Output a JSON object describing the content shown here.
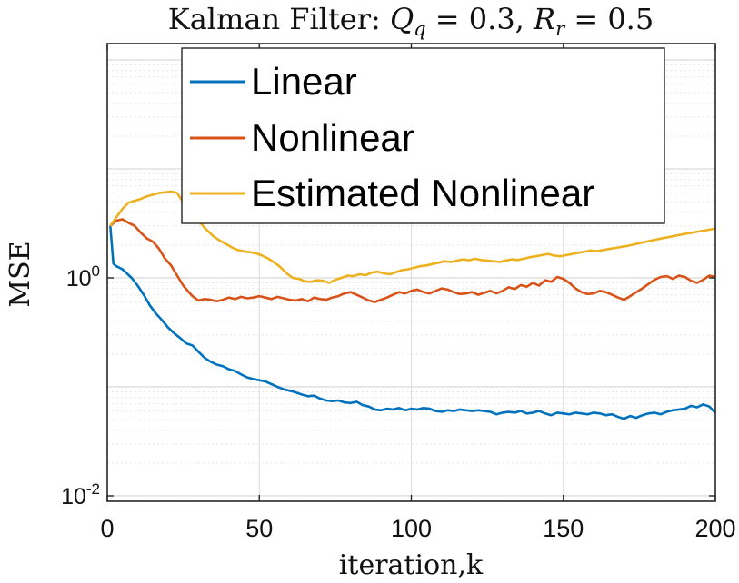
{
  "chart_data": {
    "type": "line",
    "title": "Kalman Filter: Q_q = 0.3, R_r = 0.5",
    "title_parts": {
      "prefix": "Kalman Filter: ",
      "q_symbol": "Q",
      "q_sub": "q",
      "q_eq": " = 0.3, ",
      "r_symbol": "R",
      "r_sub": "r",
      "r_eq": " = 0.5"
    },
    "xlabel": "iteration,k",
    "ylabel": "MSE",
    "xlim": [
      0,
      200
    ],
    "ylim_log10": [
      -2.05,
      2.15
    ],
    "yscale": "log",
    "grid": true,
    "legend_position": "top-center",
    "x_ticks": [
      0,
      50,
      100,
      150,
      200
    ],
    "x_tick_labels": [
      "0",
      "50",
      "100",
      "150",
      "200"
    ],
    "y_ticks_log10": [
      -2,
      0
    ],
    "y_tick_labels": [
      {
        "base": "10",
        "exp": "-2"
      },
      {
        "base": "10",
        "exp": "0"
      }
    ],
    "series": [
      {
        "name": "Linear",
        "color": "#0072BD",
        "x": [
          1,
          2,
          3,
          5,
          8,
          10,
          12,
          14,
          16,
          18,
          20,
          22,
          24,
          26,
          28,
          30,
          32,
          34,
          36,
          38,
          40,
          42,
          44,
          46,
          48,
          50,
          52,
          54,
          56,
          58,
          60,
          62,
          64,
          66,
          68,
          70,
          72,
          74,
          76,
          78,
          80,
          82,
          84,
          86,
          88,
          90,
          92,
          94,
          96,
          98,
          100,
          102,
          104,
          106,
          108,
          110,
          112,
          114,
          116,
          118,
          120,
          122,
          124,
          126,
          128,
          130,
          132,
          134,
          136,
          138,
          140,
          142,
          144,
          146,
          148,
          150,
          152,
          154,
          156,
          158,
          160,
          162,
          164,
          166,
          168,
          170,
          172,
          174,
          176,
          178,
          180,
          182,
          184,
          186,
          188,
          190,
          192,
          194,
          196,
          198,
          200
        ],
        "y": [
          3.0,
          1.35,
          1.28,
          1.2,
          1.0,
          0.85,
          0.7,
          0.56,
          0.47,
          0.41,
          0.35,
          0.31,
          0.28,
          0.25,
          0.24,
          0.21,
          0.185,
          0.17,
          0.16,
          0.155,
          0.145,
          0.14,
          0.13,
          0.122,
          0.118,
          0.115,
          0.112,
          0.106,
          0.1,
          0.095,
          0.092,
          0.089,
          0.085,
          0.082,
          0.083,
          0.078,
          0.075,
          0.074,
          0.075,
          0.072,
          0.071,
          0.073,
          0.068,
          0.066,
          0.062,
          0.061,
          0.063,
          0.062,
          0.064,
          0.061,
          0.063,
          0.062,
          0.064,
          0.063,
          0.06,
          0.059,
          0.061,
          0.06,
          0.062,
          0.061,
          0.06,
          0.061,
          0.06,
          0.059,
          0.056,
          0.058,
          0.059,
          0.058,
          0.06,
          0.057,
          0.058,
          0.06,
          0.057,
          0.055,
          0.058,
          0.057,
          0.056,
          0.058,
          0.057,
          0.056,
          0.058,
          0.057,
          0.055,
          0.056,
          0.053,
          0.051,
          0.054,
          0.052,
          0.055,
          0.057,
          0.058,
          0.056,
          0.059,
          0.061,
          0.062,
          0.063,
          0.067,
          0.065,
          0.069,
          0.066,
          0.058
        ]
      },
      {
        "name": "Nonlinear",
        "color": "#D95319",
        "x": [
          1,
          3,
          5,
          7,
          9,
          11,
          13,
          15,
          17,
          19,
          21,
          23,
          25,
          27,
          28,
          30,
          32,
          34,
          36,
          38,
          40,
          42,
          44,
          46,
          48,
          50,
          52,
          54,
          56,
          58,
          60,
          62,
          64,
          66,
          68,
          70,
          72,
          74,
          76,
          78,
          80,
          82,
          84,
          86,
          88,
          90,
          92,
          94,
          96,
          98,
          100,
          102,
          104,
          106,
          108,
          110,
          112,
          114,
          116,
          118,
          120,
          122,
          124,
          126,
          128,
          130,
          132,
          134,
          136,
          138,
          140,
          142,
          144,
          146,
          148,
          150,
          152,
          154,
          156,
          158,
          160,
          162,
          164,
          166,
          168,
          170,
          172,
          174,
          176,
          178,
          180,
          182,
          184,
          186,
          188,
          190,
          192,
          194,
          196,
          198,
          200
        ],
        "y": [
          3.0,
          3.35,
          3.45,
          3.2,
          3.0,
          2.6,
          2.3,
          2.15,
          1.85,
          1.5,
          1.3,
          1.05,
          0.85,
          0.73,
          0.68,
          0.62,
          0.64,
          0.63,
          0.61,
          0.63,
          0.66,
          0.64,
          0.67,
          0.65,
          0.66,
          0.68,
          0.66,
          0.64,
          0.67,
          0.65,
          0.63,
          0.62,
          0.64,
          0.61,
          0.66,
          0.64,
          0.63,
          0.66,
          0.68,
          0.72,
          0.74,
          0.7,
          0.66,
          0.62,
          0.6,
          0.63,
          0.66,
          0.7,
          0.74,
          0.72,
          0.76,
          0.78,
          0.74,
          0.72,
          0.76,
          0.8,
          0.78,
          0.74,
          0.71,
          0.72,
          0.74,
          0.7,
          0.73,
          0.76,
          0.72,
          0.76,
          0.82,
          0.79,
          0.86,
          0.83,
          0.9,
          0.85,
          0.95,
          0.92,
          1.02,
          0.98,
          0.9,
          0.8,
          0.74,
          0.71,
          0.72,
          0.76,
          0.74,
          0.7,
          0.66,
          0.63,
          0.68,
          0.74,
          0.8,
          0.88,
          0.96,
          1.02,
          1.04,
          0.98,
          1.05,
          1.02,
          0.94,
          0.9,
          0.96,
          1.05,
          1.02
        ]
      },
      {
        "name": "Estimated Nonlinear",
        "color": "#EDB120",
        "x": [
          1,
          3,
          5,
          7,
          9,
          11,
          13,
          15,
          17,
          19,
          21,
          23,
          25,
          27,
          29,
          31,
          33,
          35,
          37,
          39,
          41,
          43,
          45,
          47,
          49,
          51,
          53,
          55,
          57,
          59,
          61,
          63,
          65,
          67,
          69,
          71,
          73,
          75,
          77,
          79,
          81,
          83,
          85,
          87,
          89,
          91,
          93,
          95,
          97,
          99,
          101,
          103,
          105,
          107,
          109,
          111,
          113,
          115,
          117,
          119,
          121,
          123,
          125,
          127,
          129,
          131,
          133,
          135,
          137,
          139,
          141,
          143,
          145,
          147,
          149,
          151,
          153,
          155,
          157,
          159,
          161,
          163,
          165,
          167,
          169,
          171,
          173,
          175,
          177,
          179,
          181,
          183,
          185,
          187,
          189,
          191,
          193,
          195,
          197,
          199,
          200
        ],
        "y": [
          3.0,
          3.6,
          4.3,
          4.9,
          5.1,
          5.3,
          5.6,
          5.8,
          6.0,
          6.1,
          6.2,
          6.0,
          4.9,
          4.2,
          3.6,
          3.1,
          2.7,
          2.4,
          2.2,
          2.05,
          1.9,
          1.8,
          1.75,
          1.72,
          1.68,
          1.6,
          1.5,
          1.38,
          1.25,
          1.1,
          1.0,
          0.98,
          0.93,
          0.92,
          0.95,
          0.94,
          0.9,
          0.96,
          1.0,
          1.05,
          1.04,
          1.08,
          1.06,
          1.12,
          1.14,
          1.1,
          1.08,
          1.13,
          1.18,
          1.2,
          1.24,
          1.28,
          1.3,
          1.34,
          1.38,
          1.42,
          1.4,
          1.44,
          1.48,
          1.45,
          1.5,
          1.46,
          1.44,
          1.42,
          1.4,
          1.44,
          1.48,
          1.46,
          1.5,
          1.55,
          1.58,
          1.62,
          1.66,
          1.6,
          1.58,
          1.62,
          1.66,
          1.7,
          1.74,
          1.78,
          1.76,
          1.8,
          1.84,
          1.88,
          1.92,
          1.96,
          2.02,
          2.08,
          2.14,
          2.2,
          2.26,
          2.32,
          2.38,
          2.44,
          2.5,
          2.56,
          2.62,
          2.68,
          2.74,
          2.8,
          2.82
        ]
      }
    ]
  }
}
